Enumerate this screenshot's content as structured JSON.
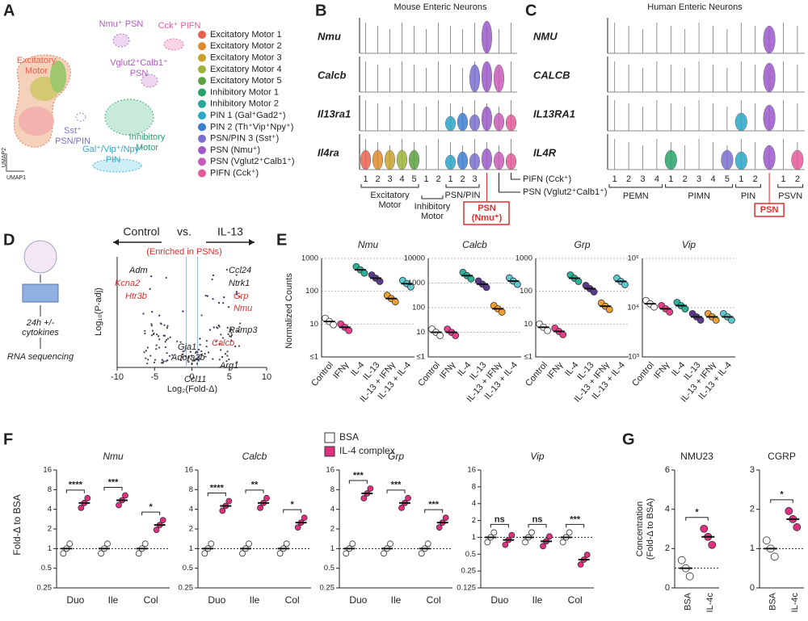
{
  "A": {
    "letter": "A",
    "clusters": [
      {
        "lines": [
          "Nmu⁺ PSN"
        ],
        "color": "#b05bc0"
      },
      {
        "lines": [
          "Cck⁺ PIFN"
        ],
        "color": "#e35a9a"
      },
      {
        "lines": [
          "Excitatory",
          "Motor"
        ],
        "color": "#e8614f"
      },
      {
        "lines": [
          "Vglut2⁺Calb1⁺",
          "PSN"
        ],
        "color": "#b05bc0"
      },
      {
        "lines": [
          "Sst⁺",
          "PSN/PIN"
        ],
        "color": "#7a6fd0"
      },
      {
        "lines": [
          "Inhibitory",
          "Motor"
        ],
        "color": "#2aa36a"
      },
      {
        "lines": [
          "Gal⁺/Vip⁺/Npy⁺",
          "PIN"
        ],
        "color": "#2aa8c8"
      }
    ],
    "axes": [
      "UMAP2",
      "UMAP1"
    ],
    "legend": [
      {
        "name": "Excitatory Motor 1",
        "color": "#e8614f"
      },
      {
        "name": "Excitatory Motor 2",
        "color": "#e08a2a"
      },
      {
        "name": "Excitatory Motor 3",
        "color": "#c9a22a"
      },
      {
        "name": "Excitatory Motor 4",
        "color": "#9bb33a"
      },
      {
        "name": "Excitatory Motor 5",
        "color": "#5aa33f"
      },
      {
        "name": "Inhibitory Motor 1",
        "color": "#2aa36a"
      },
      {
        "name": "Inhibitory Motor 2",
        "color": "#27a99a"
      },
      {
        "name": "PIN 1 (Gal⁺Gad2⁺)",
        "color": "#2aa8c8"
      },
      {
        "name": "PIN 2 (Th⁺Vip⁺Npy⁺)",
        "color": "#3c7ed0"
      },
      {
        "name": "PSN/PIN 3 (Sst⁺)",
        "color": "#7a6fd0"
      },
      {
        "name": "PSN (Nmu⁺)",
        "color": "#9b59c9"
      },
      {
        "name": "PSN (Vglut2⁺Calb1⁺)",
        "color": "#c75bb8"
      },
      {
        "name": "PIFN (Cck⁺)",
        "color": "#e35a9a"
      }
    ]
  },
  "B": {
    "letter": "B",
    "title": "Mouse Enteric Neurons",
    "genes": [
      "Nmu",
      "Calcb",
      "Il13ra1",
      "Il4ra"
    ],
    "ticks": [
      "1",
      "2",
      "3",
      "4",
      "5",
      "1",
      "2",
      "1",
      "2",
      "3",
      null,
      null,
      null
    ],
    "groups": [
      {
        "lines": [
          "Excitatory",
          "Motor"
        ]
      },
      {
        "lines": [
          "Inhibitory",
          "Motor"
        ]
      },
      {
        "lines": [
          "PSN/PIN"
        ]
      }
    ],
    "highlight": [
      "PSN",
      "(Nmu⁺)"
    ],
    "callouts": [
      "PIFN (Cck⁺)",
      "PSN (Vglut2⁺Calb1⁺)"
    ]
  },
  "C": {
    "letter": "C",
    "title": "Human Enteric Neurons",
    "genes": [
      "NMU",
      "CALCB",
      "IL13RA1",
      "IL4R"
    ],
    "ticks": [
      "1",
      "2",
      "3",
      "4",
      "1",
      "2",
      "3",
      "4",
      "5",
      "1",
      "2",
      null,
      "1",
      "2"
    ],
    "groups": [
      "PEMN",
      "PIMN",
      "PIN",
      "PSVN"
    ],
    "highlight": "PSN"
  },
  "D": {
    "letter": "D",
    "steps": [
      [
        "24h +/-",
        "cytokines"
      ],
      [
        "RNA sequencing"
      ]
    ],
    "header": [
      "Control",
      "vs.",
      "IL-13"
    ],
    "enriched": "(Enriched in PSNs)",
    "ylabel": "Log₁₀(P-adj)",
    "xlabel": "Log₂(Fold-Δ)",
    "xlim": [
      -10,
      10
    ],
    "xticks": [
      -10,
      -5,
      0,
      5,
      10
    ],
    "genes_black": [
      "Adm",
      "Ccl24",
      "Ntrk1",
      "Ramp3",
      "Gja1",
      "Adora2b",
      "Arg1",
      "Ccl11"
    ],
    "genes_red": [
      "Kcna2",
      "Htr3b",
      "Grp",
      "Nmu",
      "Calcb"
    ]
  },
  "E": {
    "letter": "E",
    "ylabel": "Normalized Counts",
    "yscale": "log",
    "categories": [
      "Control",
      "IFNγ",
      "IL-4",
      "IL-13",
      "IL-13 + IFNγ",
      "IL-13 + IL-4"
    ],
    "colors": [
      "#ffffff",
      "#e8408f",
      "#2bb39a",
      "#5b3a8c",
      "#f0a030",
      "#5cc8d0"
    ],
    "charts": [
      {
        "gene": "Nmu",
        "ylim": [
          1,
          1000
        ],
        "yticks": [
          {
            "value": 1,
            "label": "≤1"
          },
          10,
          100,
          1000
        ],
        "values": [
          12,
          8,
          450,
          250,
          60,
          170
        ]
      },
      {
        "gene": "Calcb",
        "ylim": [
          1,
          10000
        ],
        "yticks": [
          {
            "value": 1,
            "label": "≤1"
          },
          10,
          100,
          1000,
          10000
        ],
        "values": [
          10,
          10,
          2000,
          900,
          90,
          1200
        ]
      },
      {
        "gene": "Grp",
        "ylim": [
          1,
          1000
        ],
        "yticks": [
          {
            "value": 1,
            "label": "≤1"
          },
          10,
          100,
          1000
        ],
        "values": [
          8,
          6,
          250,
          120,
          35,
          200
        ]
      },
      {
        "gene": "Vip",
        "ylim": [
          1000,
          100000
        ],
        "yticks": [
          {
            "value": 1000,
            "label": "10³"
          },
          {
            "value": 10000,
            "label": "10⁴"
          },
          {
            "value": 100000,
            "label": "10⁵"
          }
        ],
        "values": [
          12000,
          9500,
          11000,
          6500,
          6500,
          6500
        ]
      }
    ]
  },
  "F": {
    "letter": "F",
    "ylabel": "Fold-Δ to BSA",
    "yscale": "log",
    "legend": [
      {
        "name": "BSA",
        "color": "#ffffff"
      },
      {
        "name": "IL-4 complex",
        "color": "#e0307f"
      }
    ],
    "groups": [
      "Duo",
      "Ile",
      "Col"
    ],
    "ref_line": 1,
    "charts": [
      {
        "gene": "Nmu",
        "ylim": [
          0.25,
          16
        ],
        "yticks": [
          0.25,
          0.5,
          1,
          2,
          4,
          8,
          16
        ],
        "bsa": [
          1,
          1,
          1
        ],
        "il4c": [
          5,
          5.5,
          2.3
        ],
        "sig": [
          "****",
          "***",
          "*"
        ]
      },
      {
        "gene": "Calcb",
        "ylim": [
          0.25,
          16
        ],
        "yticks": [
          0.25,
          0.5,
          1,
          2,
          4,
          8,
          16
        ],
        "bsa": [
          1,
          1,
          1
        ],
        "il4c": [
          4.5,
          5,
          2.5
        ],
        "sig": [
          "****",
          "**",
          "*"
        ]
      },
      {
        "gene": "Grp",
        "ylim": [
          0.25,
          16
        ],
        "yticks": [
          0.25,
          0.5,
          1,
          2,
          4,
          8,
          16
        ],
        "bsa": [
          1,
          1,
          1
        ],
        "il4c": [
          7,
          5,
          2.5
        ],
        "sig": [
          "***",
          "***",
          "***"
        ]
      },
      {
        "gene": "Vip",
        "ylim": [
          0.125,
          16
        ],
        "yticks": [
          0.125,
          0.25,
          0.5,
          1,
          2,
          4,
          8,
          16
        ],
        "bsa": [
          1,
          1,
          1
        ],
        "il4c": [
          0.9,
          0.85,
          0.4
        ],
        "sig": [
          "ns",
          "ns",
          "***"
        ]
      }
    ]
  },
  "G": {
    "letter": "G",
    "ylabel": [
      "Concentration",
      "(Fold-Δ to BSA)"
    ],
    "categories": [
      "BSA",
      "IL-4c"
    ],
    "colors": [
      "#ffffff",
      "#e0307f"
    ],
    "ref_line": 1,
    "charts": [
      {
        "title": "NMU23",
        "ylim": [
          0,
          6
        ],
        "yticks": [
          0,
          2,
          4,
          6
        ],
        "values": [
          1,
          2.6
        ],
        "sig": "*"
      },
      {
        "title": "CGRP",
        "ylim": [
          0,
          3
        ],
        "yticks": [
          0,
          1,
          2,
          3
        ],
        "values": [
          1,
          1.75
        ],
        "sig": "*"
      }
    ]
  }
}
